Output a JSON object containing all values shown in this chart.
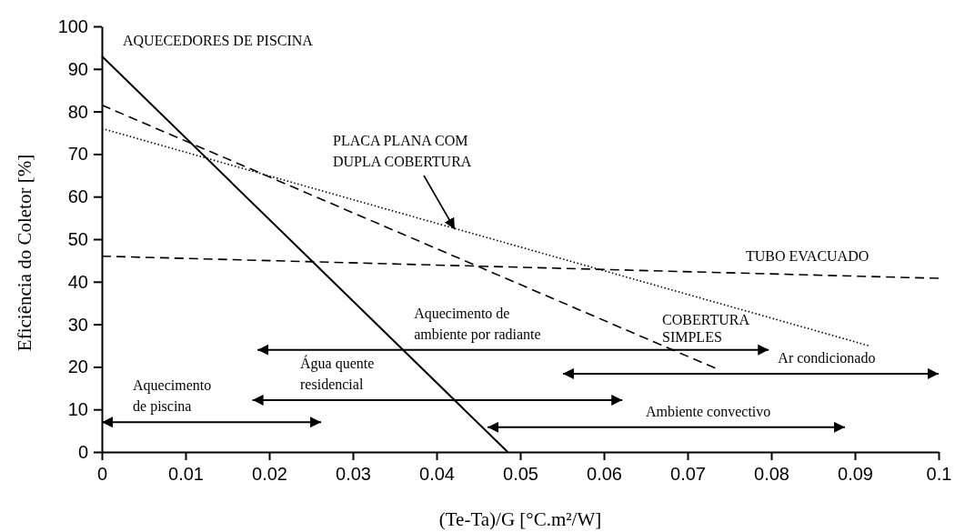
{
  "chart_data": {
    "type": "line",
    "xlabel": "(Te-Ta)/G [°C.m²/W]",
    "ylabel": "Eficiência do Coletor [%]",
    "xlim": [
      0,
      0.1
    ],
    "ylim": [
      0,
      100
    ],
    "xticks": [
      0,
      0.01,
      0.02,
      0.03,
      0.04,
      0.05,
      0.06,
      0.07,
      0.08,
      0.09,
      0.1
    ],
    "yticks": [
      0,
      10,
      20,
      30,
      40,
      50,
      60,
      70,
      80,
      90,
      100
    ],
    "grid": false,
    "marker": "none",
    "series": [
      {
        "name": "AQUECEDORES DE PISCINA",
        "color": "#000000",
        "line_style": "solid",
        "x": [
          0,
          0.0485
        ],
        "values": [
          93,
          0
        ]
      },
      {
        "name": "PLACA PLANA COM DUPLA COBERTURA",
        "color": "#000000",
        "line_style": "dotted",
        "x": [
          0,
          0.0916
        ],
        "values": [
          76,
          25
        ]
      },
      {
        "name": "COBERTURA SIMPLES",
        "color": "#000000",
        "line_style": "dashed",
        "x": [
          0,
          0.0733
        ],
        "values": [
          81.5,
          19.7
        ]
      },
      {
        "name": "TUBO EVACUADO",
        "color": "#000000",
        "line_style": "dashed",
        "x": [
          0,
          0.1
        ],
        "values": [
          46,
          40.8
        ]
      },
      {
        "color": "#000000",
        "line_style": "solid",
        "x": [
          0.0186,
          0.0797
        ],
        "values": [
          24,
          24
        ]
      },
      {
        "color": "#000000",
        "line_style": "solid",
        "x": [
          0.018,
          0.0622
        ],
        "values": [
          12.2,
          12.2
        ]
      },
      {
        "color": "#000000",
        "line_style": "solid",
        "x": [
          0,
          0.0262
        ],
        "values": [
          7,
          7
        ]
      },
      {
        "color": "#000000",
        "line_style": "solid",
        "x": [
          0.0551,
          0.1
        ],
        "values": [
          18.4,
          18.4
        ]
      },
      {
        "color": "#000000",
        "line_style": "solid",
        "x": [
          0.0461,
          0.0888
        ],
        "values": [
          5.8,
          5.8
        ]
      }
    ],
    "annotations": [
      {
        "text": "Aquecimento de ambiente por radiante",
        "x": 0.0373,
        "y": 24
      },
      {
        "text": "Água quente residencial",
        "x": 0.0237,
        "y": 12.2
      },
      {
        "text": "Aquecimento de piscina",
        "x": 0.0037,
        "y": 7
      },
      {
        "text": "Ar condicionado",
        "x": 0.0808,
        "y": 18.4
      },
      {
        "text": "Ambiente convectivo",
        "x": 0.065,
        "y": 5.8
      }
    ]
  }
}
